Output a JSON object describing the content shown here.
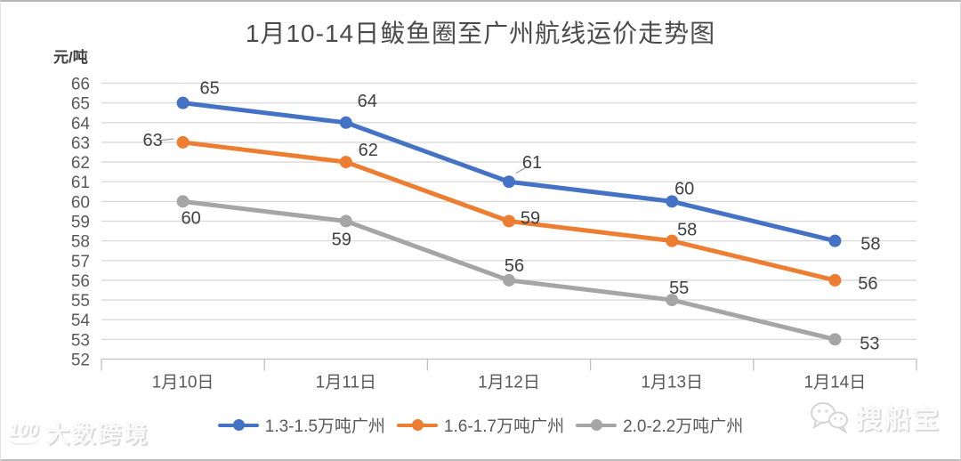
{
  "chart_data": {
    "type": "line",
    "title": "1月10-14日鲅鱼圈至广州航线运价走势图",
    "ylabel": "元/吨",
    "xlabel": "",
    "categories": [
      "1月10日",
      "1月11日",
      "1月12日",
      "1月13日",
      "1月14日"
    ],
    "series": [
      {
        "name": "1.3-1.5万吨广州",
        "color": "#4472C4",
        "values": [
          65,
          64,
          61,
          60,
          58
        ],
        "label_offsets": [
          [
            30,
            -17
          ],
          [
            24,
            -25
          ],
          [
            26,
            -22
          ],
          [
            14,
            -15
          ],
          [
            40,
            3
          ]
        ],
        "leader_points": [
          2
        ]
      },
      {
        "name": "1.6-1.7万吨广州",
        "color": "#ED7D31",
        "values": [
          63,
          62,
          59,
          58,
          56
        ],
        "label_offsets": [
          [
            -34,
            -3
          ],
          [
            25,
            -14
          ],
          [
            24,
            -4
          ],
          [
            17,
            -13
          ],
          [
            37,
            3
          ]
        ],
        "leader_points": [
          0
        ]
      },
      {
        "name": "2.0-2.2万吨广州",
        "color": "#A5A5A5",
        "values": [
          60,
          59,
          56,
          55,
          53
        ],
        "label_offsets": [
          [
            9,
            18
          ],
          [
            -5,
            20
          ],
          [
            6,
            -17
          ],
          [
            8,
            -14
          ],
          [
            39,
            4
          ]
        ],
        "leader_points": []
      }
    ],
    "ylim": [
      52,
      66
    ],
    "ytick_step": 1,
    "grid": true,
    "data_labels": true,
    "legend_position": "bottom"
  },
  "styles": {
    "grid_color": "#d9d9d9",
    "axis_color": "#bfbfbf",
    "leader_color": "#9e9e9e"
  },
  "watermarks": {
    "left_logo": "100",
    "left_text": "大数跨境",
    "right_text": "搜船宝"
  }
}
